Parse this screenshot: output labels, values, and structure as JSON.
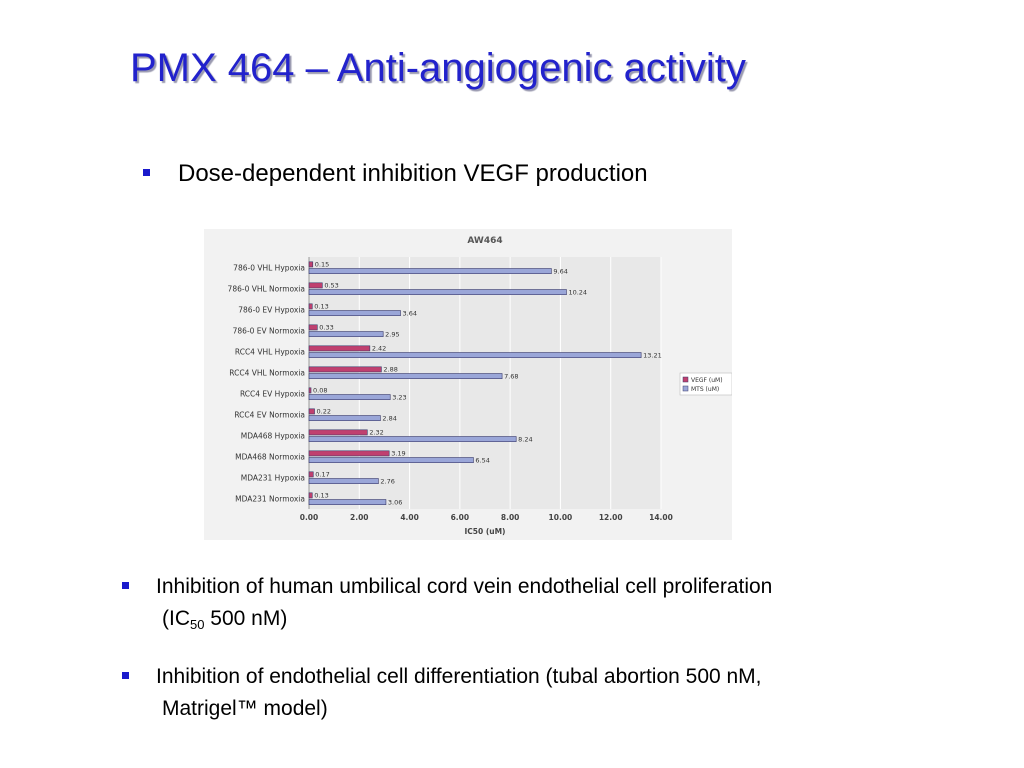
{
  "slide": {
    "title": "PMX 464 – Anti-angiogenic activity",
    "bullet1": "Dose-dependent inhibition VEGF production",
    "bullet2_line1": "Inhibition of human umbilical cord vein endothelial cell proliferation",
    "bullet2_line2_prefix": "(IC",
    "bullet2_line2_sub": "50",
    "bullet2_line2_suffix": " 500 nM)",
    "bullet3_line1": "Inhibition of endothelial cell differentiation (tubal abortion 500 nM,",
    "bullet3_line2": "Matrigel™ model)"
  },
  "colors": {
    "title": "#2222cc",
    "bullet_mark": "#1a1acc",
    "vegf_bar": "#c0406f",
    "mts_bar": "#9aa6d8",
    "bar_stroke": "#3a3a6a",
    "plot_bg": "#e8e8e8",
    "grid": "#ffffff"
  },
  "chart_data": {
    "type": "bar",
    "orientation": "horizontal",
    "title": "AW464",
    "xlabel": "IC50 (uM)",
    "ylabel": "",
    "xlim": [
      0,
      14
    ],
    "xticks": [
      "0.00",
      "2.00",
      "4.00",
      "6.00",
      "8.00",
      "10.00",
      "12.00",
      "14.00"
    ],
    "grid": true,
    "legend_position": "right",
    "categories": [
      "786-0 VHL Hypoxia",
      "786-0 VHL Normoxia",
      "786-0 EV Hypoxia",
      "786-0 EV Normoxia",
      "RCC4 VHL Hypoxia",
      "RCC4 VHL Normoxia",
      "RCC4 EV Hypoxia",
      "RCC4 EV Normoxia",
      "MDA468 Hypoxia",
      "MDA468 Normoxia",
      "MDA231 Hypoxia",
      "MDA231 Normoxia"
    ],
    "series": [
      {
        "name": "VEGF (uM)",
        "values": [
          0.15,
          0.53,
          0.13,
          0.33,
          2.42,
          2.88,
          0.08,
          0.22,
          2.32,
          3.19,
          0.17,
          0.13
        ],
        "labels": [
          "0.15",
          "0.53",
          "0.13",
          "0.33",
          "2.42",
          "2.88",
          "0.08",
          "0.22",
          "2.32",
          "3.19",
          "0.17",
          "0.13"
        ]
      },
      {
        "name": "MTS (uM)",
        "values": [
          9.64,
          10.24,
          3.64,
          2.95,
          13.21,
          7.68,
          3.23,
          2.84,
          8.24,
          6.54,
          2.76,
          3.06
        ],
        "labels": [
          "9.64",
          "10.24",
          "3.64",
          "2.95",
          "13.21",
          "7.68",
          "3.23",
          "2.84",
          "8.24",
          "6.54",
          "2.76",
          "3.06"
        ]
      }
    ]
  }
}
